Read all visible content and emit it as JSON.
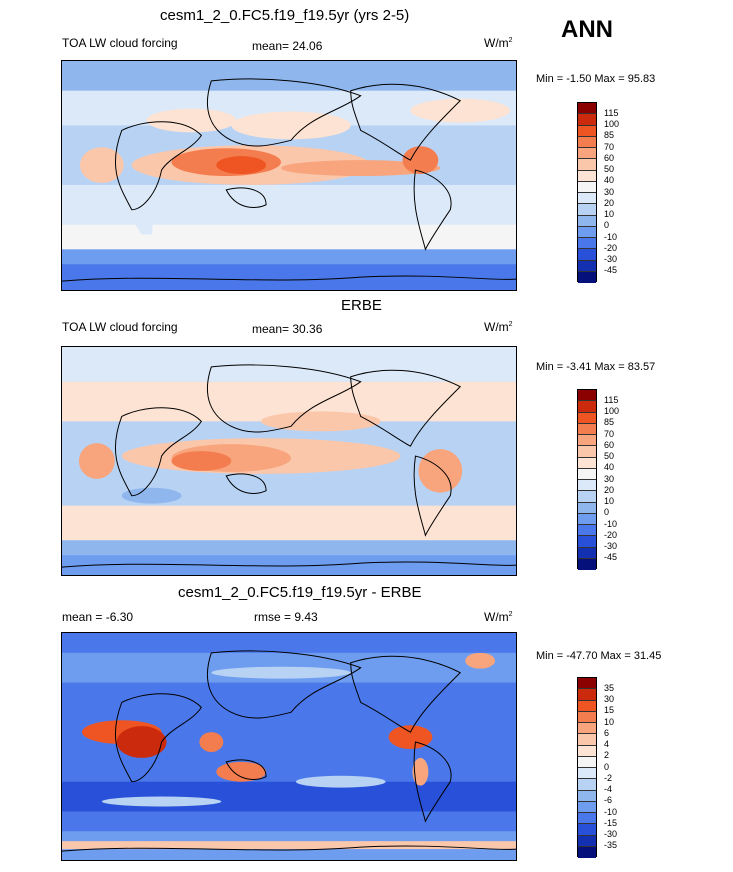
{
  "season": "ANN",
  "panels": [
    {
      "title": "cesm1_2_0.FC5.f19_f19.5yr (yrs 2-5)",
      "left": "TOA LW cloud forcing",
      "center": "mean=  24.06",
      "units": "W/m",
      "units_sup": "2",
      "minmax": "Min =  -1.50 Max =  95.83",
      "colorbar_labels": [
        "115",
        "100",
        "85",
        "70",
        "60",
        "50",
        "40",
        "30",
        "20",
        "10",
        "0",
        "-10",
        "-20",
        "-30",
        "-45"
      ],
      "colorbar_colors": [
        "#8b0000",
        "#cc2a0c",
        "#ee5522",
        "#f47d4f",
        "#f8a47c",
        "#fbc7ab",
        "#fde3d3",
        "#f5f5f5",
        "#dce9f9",
        "#b8d2f4",
        "#8fb7ee",
        "#6e9df0",
        "#4a78ea",
        "#2850d8",
        "#1230b0",
        "#06107a"
      ]
    },
    {
      "title": "ERBE",
      "left": "TOA LW cloud forcing",
      "center": "mean=  30.36",
      "units": "W/m",
      "units_sup": "2",
      "minmax": "Min =  -3.41 Max =  83.57",
      "colorbar_labels": [
        "115",
        "100",
        "85",
        "70",
        "60",
        "50",
        "40",
        "30",
        "20",
        "10",
        "0",
        "-10",
        "-20",
        "-30",
        "-45"
      ],
      "colorbar_colors": [
        "#8b0000",
        "#cc2a0c",
        "#ee5522",
        "#f47d4f",
        "#f8a47c",
        "#fbc7ab",
        "#fde3d3",
        "#f5f5f5",
        "#dce9f9",
        "#b8d2f4",
        "#8fb7ee",
        "#6e9df0",
        "#4a78ea",
        "#2850d8",
        "#1230b0",
        "#06107a"
      ]
    },
    {
      "title": "cesm1_2_0.FC5.f19_f19.5yr - ERBE",
      "left": "mean =  -6.30",
      "center": "rmse =   9.43",
      "units": "W/m",
      "units_sup": "2",
      "minmax": "Min = -47.70 Max =  31.45",
      "colorbar_labels": [
        "35",
        "30",
        "15",
        "10",
        "6",
        "4",
        "2",
        "0",
        "-2",
        "-4",
        "-6",
        "-10",
        "-15",
        "-30",
        "-35"
      ],
      "colorbar_colors": [
        "#8b0000",
        "#cc2a0c",
        "#ee5522",
        "#f47d4f",
        "#f8a47c",
        "#fbc7ab",
        "#fde3d3",
        "#f5f5f5",
        "#dce9f9",
        "#b8d2f4",
        "#8fb7ee",
        "#6e9df0",
        "#4a78ea",
        "#2850d8",
        "#1230b0",
        "#06107a"
      ]
    }
  ]
}
